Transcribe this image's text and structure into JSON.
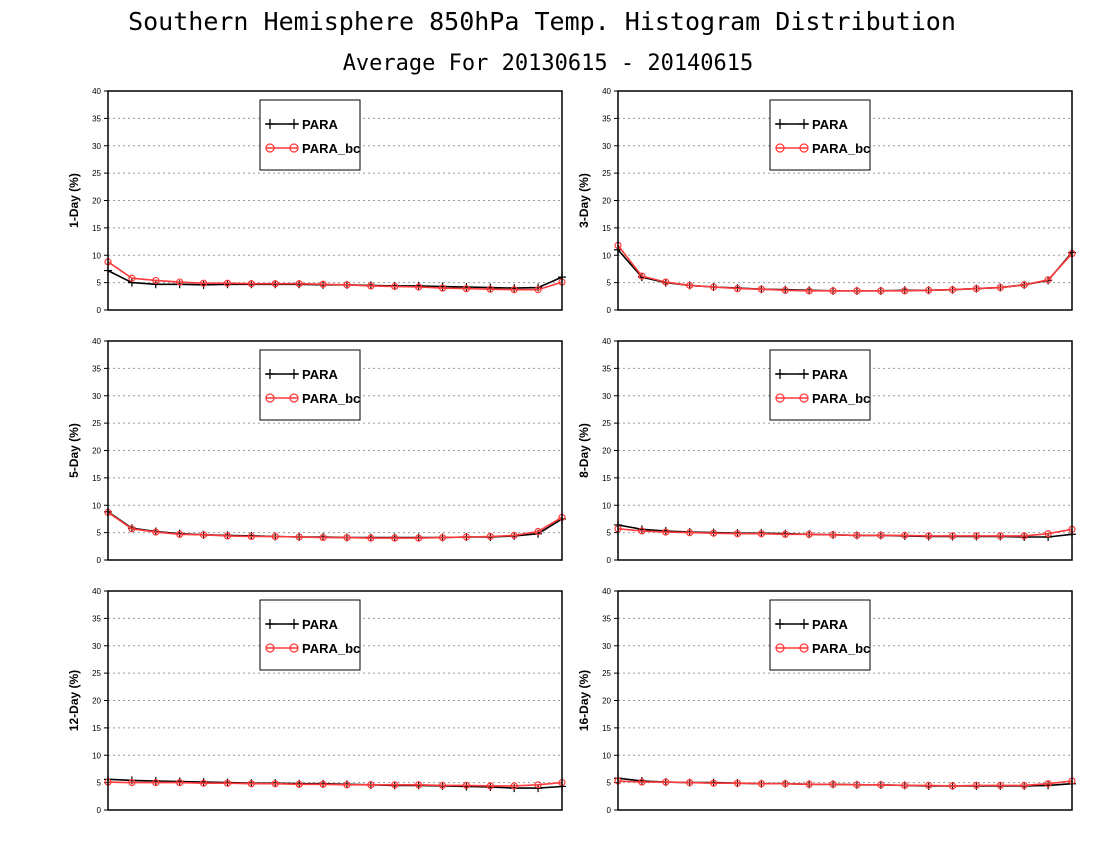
{
  "title": "Southern Hemisphere 850hPa Temp. Histogram Distribution",
  "subtitle": "Average For 20130615 - 20140615",
  "colors": {
    "PARA": "#000000",
    "PARA_bc": "#ff3a3a"
  },
  "chart_data": [
    {
      "type": "line",
      "ylabel": "1-Day (%)",
      "ylim": [
        0,
        40
      ],
      "yticks": [
        0,
        5,
        10,
        15,
        20,
        25,
        30,
        35,
        40
      ],
      "grid": true,
      "legend_position": "top-center",
      "series": [
        {
          "name": "PARA",
          "marker": "plus",
          "values": [
            7.2,
            5.0,
            4.7,
            4.7,
            4.6,
            4.7,
            4.7,
            4.7,
            4.7,
            4.6,
            4.6,
            4.5,
            4.4,
            4.4,
            4.3,
            4.2,
            4.1,
            4.0,
            4.1,
            6.0
          ]
        },
        {
          "name": "PARA_bc",
          "marker": "circle",
          "values": [
            8.8,
            5.8,
            5.4,
            5.1,
            4.9,
            4.9,
            4.8,
            4.8,
            4.8,
            4.7,
            4.6,
            4.4,
            4.3,
            4.2,
            4.0,
            3.9,
            3.8,
            3.7,
            3.7,
            5.1
          ]
        }
      ]
    },
    {
      "type": "line",
      "ylabel": "3-Day (%)",
      "ylim": [
        0,
        40
      ],
      "yticks": [
        0,
        5,
        10,
        15,
        20,
        25,
        30,
        35,
        40
      ],
      "grid": true,
      "legend_position": "top-center",
      "series": [
        {
          "name": "PARA",
          "marker": "plus",
          "values": [
            11.0,
            6.0,
            5.0,
            4.5,
            4.2,
            4.0,
            3.8,
            3.7,
            3.6,
            3.5,
            3.5,
            3.5,
            3.6,
            3.6,
            3.7,
            3.9,
            4.1,
            4.6,
            5.4,
            10.5
          ]
        },
        {
          "name": "PARA_bc",
          "marker": "circle",
          "values": [
            11.8,
            6.2,
            5.1,
            4.5,
            4.2,
            3.9,
            3.8,
            3.6,
            3.5,
            3.5,
            3.5,
            3.5,
            3.5,
            3.6,
            3.7,
            3.9,
            4.1,
            4.6,
            5.5,
            10.3
          ]
        }
      ]
    },
    {
      "type": "line",
      "ylabel": "5-Day (%)",
      "ylim": [
        0,
        40
      ],
      "yticks": [
        0,
        5,
        10,
        15,
        20,
        25,
        30,
        35,
        40
      ],
      "grid": true,
      "legend_position": "top-center",
      "series": [
        {
          "name": "PARA",
          "marker": "plus",
          "values": [
            8.8,
            5.8,
            5.2,
            4.8,
            4.6,
            4.5,
            4.4,
            4.3,
            4.2,
            4.2,
            4.1,
            4.1,
            4.1,
            4.1,
            4.1,
            4.2,
            4.2,
            4.4,
            4.8,
            7.5
          ]
        },
        {
          "name": "PARA_bc",
          "marker": "circle",
          "values": [
            8.7,
            5.7,
            5.1,
            4.7,
            4.6,
            4.4,
            4.3,
            4.3,
            4.2,
            4.1,
            4.1,
            4.0,
            4.0,
            4.0,
            4.1,
            4.2,
            4.3,
            4.5,
            5.2,
            7.8
          ]
        }
      ]
    },
    {
      "type": "line",
      "ylabel": "8-Day (%)",
      "ylim": [
        0,
        40
      ],
      "yticks": [
        0,
        5,
        10,
        15,
        20,
        25,
        30,
        35,
        40
      ],
      "grid": true,
      "legend_position": "top-center",
      "series": [
        {
          "name": "PARA",
          "marker": "plus",
          "values": [
            6.4,
            5.6,
            5.3,
            5.1,
            5.0,
            4.9,
            4.9,
            4.8,
            4.7,
            4.6,
            4.5,
            4.5,
            4.4,
            4.3,
            4.3,
            4.3,
            4.3,
            4.2,
            4.2,
            4.7
          ]
        },
        {
          "name": "PARA_bc",
          "marker": "circle",
          "values": [
            5.7,
            5.3,
            5.1,
            5.0,
            4.9,
            4.8,
            4.8,
            4.7,
            4.7,
            4.6,
            4.5,
            4.5,
            4.5,
            4.4,
            4.4,
            4.4,
            4.4,
            4.4,
            4.8,
            5.6
          ]
        }
      ]
    },
    {
      "type": "line",
      "ylabel": "12-Day (%)",
      "ylim": [
        0,
        40
      ],
      "yticks": [
        0,
        5,
        10,
        15,
        20,
        25,
        30,
        35,
        40
      ],
      "grid": true,
      "legend_position": "top-center",
      "series": [
        {
          "name": "PARA",
          "marker": "plus",
          "values": [
            5.6,
            5.4,
            5.3,
            5.2,
            5.1,
            5.0,
            4.9,
            4.9,
            4.8,
            4.8,
            4.7,
            4.6,
            4.5,
            4.5,
            4.4,
            4.3,
            4.2,
            4.0,
            4.0,
            4.3
          ]
        },
        {
          "name": "PARA_bc",
          "marker": "circle",
          "values": [
            5.1,
            5.0,
            5.0,
            5.0,
            4.9,
            4.9,
            4.8,
            4.8,
            4.7,
            4.7,
            4.6,
            4.6,
            4.6,
            4.6,
            4.5,
            4.5,
            4.4,
            4.4,
            4.6,
            5.0
          ]
        }
      ]
    },
    {
      "type": "line",
      "ylabel": "16-Day (%)",
      "ylim": [
        0,
        40
      ],
      "yticks": [
        0,
        5,
        10,
        15,
        20,
        25,
        30,
        35,
        40
      ],
      "grid": true,
      "legend_position": "top-center",
      "series": [
        {
          "name": "PARA",
          "marker": "plus",
          "values": [
            5.8,
            5.3,
            5.1,
            5.0,
            5.0,
            4.9,
            4.8,
            4.8,
            4.7,
            4.7,
            4.6,
            4.6,
            4.5,
            4.4,
            4.4,
            4.4,
            4.4,
            4.4,
            4.5,
            4.8
          ]
        },
        {
          "name": "PARA_bc",
          "marker": "circle",
          "values": [
            5.3,
            5.1,
            5.1,
            5.0,
            4.9,
            4.9,
            4.8,
            4.8,
            4.7,
            4.7,
            4.6,
            4.6,
            4.5,
            4.5,
            4.4,
            4.5,
            4.5,
            4.5,
            4.8,
            5.3
          ]
        }
      ]
    }
  ]
}
